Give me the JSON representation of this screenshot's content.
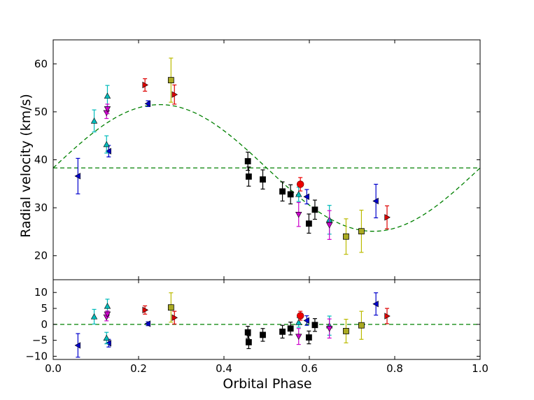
{
  "chart_data": {
    "type": "scatter",
    "xlabel": "Orbital Phase",
    "ylabel": "Radial velocity (km/s)",
    "xlim": [
      0.0,
      1.0
    ],
    "xticks": [
      "0.0",
      "0.2",
      "0.4",
      "0.6",
      "0.8",
      "1.0"
    ],
    "top": {
      "ylim": [
        15,
        65
      ],
      "yticks": [
        "20",
        "30",
        "40",
        "50",
        "60"
      ],
      "systemic_velocity": 38.3,
      "model": {
        "type": "sine",
        "gamma": 38.3,
        "amplitude": 13.2,
        "peak_phase": 0.25,
        "color": "#008000"
      },
      "series": [
        {
          "name": "blue-left-triangle",
          "marker": "tri-left",
          "color": "#0000cc",
          "points": [
            {
              "x": 0.058,
              "y": 36.6,
              "err": 3.7
            },
            {
              "x": 0.13,
              "y": 41.8,
              "err": 1.2
            },
            {
              "x": 0.222,
              "y": 51.7,
              "err": 0.6
            },
            {
              "x": 0.594,
              "y": 32.3,
              "err": 1.5
            },
            {
              "x": 0.756,
              "y": 31.4,
              "err": 3.5
            }
          ]
        },
        {
          "name": "cyan-up-triangle",
          "marker": "tri-up",
          "color": "#00bbbb",
          "points": [
            {
              "x": 0.096,
              "y": 48.1,
              "err": 2.3
            },
            {
              "x": 0.125,
              "y": 43.2,
              "err": 1.8
            },
            {
              "x": 0.127,
              "y": 53.3,
              "err": 2.2
            },
            {
              "x": 0.575,
              "y": 32.8,
              "err": 1.5
            },
            {
              "x": 0.647,
              "y": 27.5,
              "err": 3.0
            }
          ]
        },
        {
          "name": "magenta-down-triangle",
          "marker": "tri-down",
          "color": "#cc00cc",
          "points": [
            {
              "x": 0.125,
              "y": 49.8,
              "err": 1.2
            },
            {
              "x": 0.127,
              "y": 50.6,
              "err": 1.0
            },
            {
              "x": 0.575,
              "y": 28.6,
              "err": 2.5
            },
            {
              "x": 0.647,
              "y": 26.4,
              "err": 3.0
            }
          ]
        },
        {
          "name": "red-right-triangle",
          "marker": "tri-right",
          "color": "#dd0000",
          "points": [
            {
              "x": 0.215,
              "y": 55.6,
              "err": 1.3
            },
            {
              "x": 0.284,
              "y": 53.6,
              "err": 2.0
            },
            {
              "x": 0.782,
              "y": 28.0,
              "err": 2.4
            }
          ]
        },
        {
          "name": "yellow-square",
          "marker": "square",
          "color": "#bbbb00",
          "fill": "#aaaa22",
          "points": [
            {
              "x": 0.276,
              "y": 56.6,
              "err": 4.6
            },
            {
              "x": 0.686,
              "y": 24.0,
              "err": 3.7
            },
            {
              "x": 0.722,
              "y": 25.1,
              "err": 4.4
            }
          ]
        },
        {
          "name": "black-square",
          "marker": "square",
          "color": "#000000",
          "points": [
            {
              "x": 0.456,
              "y": 39.7,
              "err": 1.9
            },
            {
              "x": 0.458,
              "y": 36.5,
              "err": 2.0
            },
            {
              "x": 0.491,
              "y": 35.9,
              "err": 2.0
            },
            {
              "x": 0.537,
              "y": 33.4,
              "err": 2.0
            },
            {
              "x": 0.556,
              "y": 32.8,
              "err": 2.0
            },
            {
              "x": 0.599,
              "y": 26.7,
              "err": 2.0
            },
            {
              "x": 0.613,
              "y": 29.6,
              "err": 2.0
            }
          ]
        },
        {
          "name": "red-circle",
          "marker": "circle",
          "color": "#ee0000",
          "edge": "#880000",
          "points": [
            {
              "x": 0.579,
              "y": 34.9,
              "err": 1.4
            }
          ]
        }
      ]
    },
    "bottom": {
      "ylim": [
        -11,
        14
      ],
      "yticks": [
        "10",
        "5",
        "0",
        "−5",
        "−10"
      ],
      "zero_line": 0,
      "series": [
        {
          "name": "blue-left-triangle",
          "marker": "tri-left",
          "color": "#0000cc",
          "points": [
            {
              "x": 0.058,
              "y": -6.6,
              "err": 3.7
            },
            {
              "x": 0.13,
              "y": -5.9,
              "err": 1.2
            },
            {
              "x": 0.222,
              "y": 0.2,
              "err": 0.6
            },
            {
              "x": 0.594,
              "y": 1.2,
              "err": 1.5
            },
            {
              "x": 0.756,
              "y": 6.4,
              "err": 3.5
            }
          ]
        },
        {
          "name": "cyan-up-triangle",
          "marker": "tri-up",
          "color": "#00bbbb",
          "points": [
            {
              "x": 0.096,
              "y": 2.4,
              "err": 2.3
            },
            {
              "x": 0.125,
              "y": -4.3,
              "err": 1.8
            },
            {
              "x": 0.127,
              "y": 5.7,
              "err": 2.2
            },
            {
              "x": 0.575,
              "y": 0.6,
              "err": 1.5
            },
            {
              "x": 0.647,
              "y": -0.4,
              "err": 3.0
            }
          ]
        },
        {
          "name": "magenta-down-triangle",
          "marker": "tri-down",
          "color": "#cc00cc",
          "points": [
            {
              "x": 0.125,
              "y": 2.3,
              "err": 1.2
            },
            {
              "x": 0.127,
              "y": 3.2,
              "err": 1.0
            },
            {
              "x": 0.575,
              "y": -3.8,
              "err": 2.5
            },
            {
              "x": 0.647,
              "y": -1.3,
              "err": 3.0
            }
          ]
        },
        {
          "name": "red-right-triangle",
          "marker": "tri-right",
          "color": "#dd0000",
          "points": [
            {
              "x": 0.215,
              "y": 4.5,
              "err": 1.3
            },
            {
              "x": 0.284,
              "y": 2.1,
              "err": 2.0
            },
            {
              "x": 0.782,
              "y": 2.6,
              "err": 2.4
            }
          ]
        },
        {
          "name": "yellow-square",
          "marker": "square",
          "color": "#bbbb00",
          "fill": "#aaaa22",
          "points": [
            {
              "x": 0.276,
              "y": 5.3,
              "err": 4.6
            },
            {
              "x": 0.686,
              "y": -2.1,
              "err": 3.7
            },
            {
              "x": 0.722,
              "y": -0.3,
              "err": 4.4
            }
          ]
        },
        {
          "name": "black-square",
          "marker": "square",
          "color": "#000000",
          "points": [
            {
              "x": 0.456,
              "y": -2.5,
              "err": 1.9
            },
            {
              "x": 0.458,
              "y": -5.6,
              "err": 2.0
            },
            {
              "x": 0.491,
              "y": -3.3,
              "err": 2.0
            },
            {
              "x": 0.537,
              "y": -2.3,
              "err": 2.0
            },
            {
              "x": 0.556,
              "y": -1.3,
              "err": 2.0
            },
            {
              "x": 0.599,
              "y": -4.1,
              "err": 2.0
            },
            {
              "x": 0.613,
              "y": -0.2,
              "err": 2.0
            }
          ]
        },
        {
          "name": "red-circle",
          "marker": "circle",
          "color": "#ee0000",
          "edge": "#880000",
          "points": [
            {
              "x": 0.579,
              "y": 2.7,
              "err": 1.4
            }
          ]
        }
      ]
    }
  }
}
